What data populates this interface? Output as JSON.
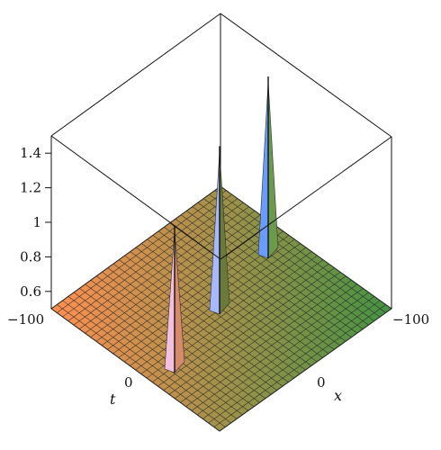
{
  "chart_data": {
    "type": "surface3d",
    "title": "",
    "xlabel": "x",
    "ylabel": "t",
    "zlabel": "",
    "x_range": [
      -100,
      100
    ],
    "t_range": [
      -100,
      100
    ],
    "z_range": [
      0.5,
      1.5
    ],
    "z_ticks": [
      "1.4",
      "1.2",
      "1",
      "0.8",
      "0.6"
    ],
    "x_ticks": [
      "0",
      "−100"
    ],
    "t_ticks": [
      "−100",
      "0"
    ],
    "baseline_z": 0.5,
    "peaks": [
      {
        "t": -60,
        "x": 0,
        "z": 1.3
      },
      {
        "t": 0,
        "x": 0,
        "z": 1.42
      },
      {
        "t": 60,
        "x": 0,
        "z": 1.5
      }
    ],
    "colormap": [
      "#ff5050",
      "#ffe060",
      "#60ff50",
      "#3a3a3a"
    ]
  }
}
